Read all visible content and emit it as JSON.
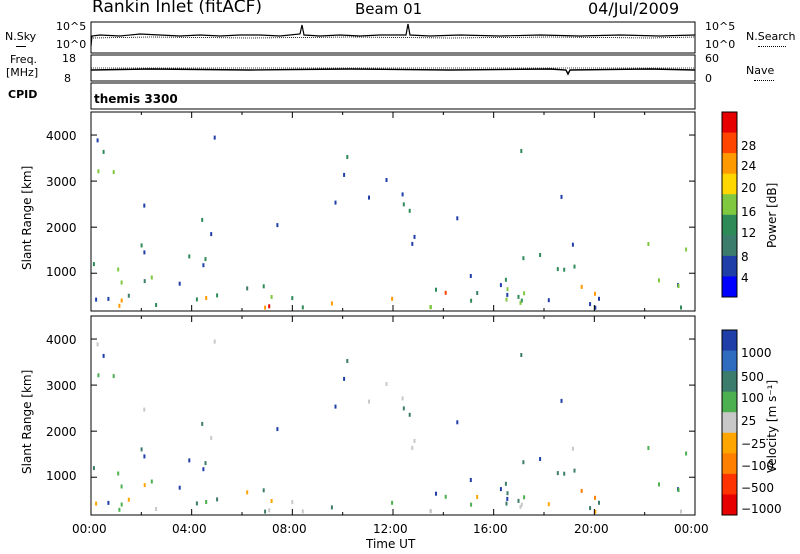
{
  "header": {
    "station": "Rankin Inlet (fitACF)",
    "beam": "Beam 01",
    "date": "04/Jul/2009"
  },
  "strips": {
    "nsky": {
      "left_label": "N.Sky",
      "right_label": "N.Search",
      "left_ticks": [
        "10^5",
        "10^0"
      ],
      "right_ticks": [
        "10^5",
        "10^0"
      ]
    },
    "freq": {
      "left_label_1": "Freq.",
      "left_label_2": "[MHz]",
      "right_label": "Nave",
      "left_ticks": [
        "18",
        "8"
      ],
      "right_ticks": [
        "60",
        "0"
      ]
    },
    "cpid": {
      "label": "CPID",
      "text": "themis 3300"
    }
  },
  "axes": {
    "ylabel": "Slant Range [km]",
    "xlabel": "Time UT",
    "yticks": [
      "4000",
      "3000",
      "2000",
      "1000"
    ],
    "xticks": [
      "00:00",
      "04:00",
      "08:00",
      "12:00",
      "16:00",
      "20:00",
      "00:00"
    ]
  },
  "colorbars": {
    "power": {
      "label": "Power [dB]",
      "ticks": [
        "28",
        "24",
        "20",
        "16",
        "12",
        "8",
        "4"
      ],
      "colors": [
        "#e60000",
        "#ff4500",
        "#ff9900",
        "#ffd700",
        "#7fc840",
        "#2e8b57",
        "#3c7c6c",
        "#1f3ea8",
        "#0000ff"
      ]
    },
    "velocity": {
      "label": "Velocity [m s⁻¹]",
      "ticks": [
        "1000",
        "500",
        "100",
        "25",
        "−25",
        "−100",
        "−500",
        "−1000"
      ],
      "colors": [
        "#1f3ea8",
        "#2f6bbf",
        "#3c7c6c",
        "#4caf50",
        "#c8c8c8",
        "#ffa500",
        "#ff7f00",
        "#ff3300",
        "#e60000"
      ]
    }
  },
  "chart_data": {
    "type": "heatmap",
    "title": "Rankin Inlet (fitACF)",
    "panels": [
      {
        "name": "Power",
        "ylabel": "Slant Range [km]",
        "ylim": [
          180,
          4500
        ],
        "xlim_hours": [
          0,
          24
        ],
        "colorbar_label": "Power [dB]",
        "colorbar_ticks": [
          28,
          24,
          20,
          16,
          12,
          8,
          4
        ]
      },
      {
        "name": "Velocity",
        "ylabel": "Slant Range [km]",
        "ylim": [
          180,
          4500
        ],
        "xlim_hours": [
          0,
          24
        ],
        "colorbar_label": "Velocity [m s⁻¹]",
        "colorbar_ticks": [
          1000,
          500,
          100,
          25,
          -25,
          -100,
          -500,
          -1000
        ]
      }
    ],
    "xlabel": "Time UT",
    "x_ticks": [
      "00:00",
      "04:00",
      "08:00",
      "12:00",
      "16:00",
      "20:00",
      "00:00"
    ],
    "y_ticks": [
      4000,
      3000,
      2000,
      1000
    ]
  }
}
